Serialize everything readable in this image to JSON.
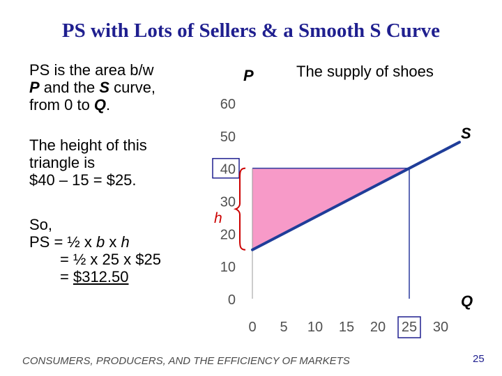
{
  "slide": {
    "title": "PS with Lots of Sellers & a Smooth S Curve",
    "page_number": "25",
    "footer": "CONSUMERS, PRODUCERS, AND THE EFFICIENCY OF MARKETS"
  },
  "text": {
    "p1": [
      "PS is the area b/w",
      "P  and the S curve,",
      "from 0 to Q."
    ],
    "p2": [
      "The height of this",
      "triangle is",
      "$40 – 15 = $25."
    ],
    "p3": [
      "So,",
      "PS = ½ x b x h",
      "= ½ x 25 x $25",
      "= $312.50"
    ]
  },
  "chart_labels": {
    "p": "P",
    "q": "Q",
    "s": "S",
    "h": "h",
    "graph_title": "The supply of shoes"
  },
  "colors": {
    "title": "#1f1f8f",
    "supply_line": "#1f3d99",
    "ps_area": "#f79ac8",
    "highlight": "#1f1f8f",
    "brace": "#cc0000",
    "ticks": "#505050"
  },
  "chart_data": {
    "type": "line",
    "title": "The supply of shoes",
    "xlabel": "Q",
    "ylabel": "P",
    "xlim": [
      0,
      30
    ],
    "ylim": [
      0,
      60
    ],
    "x_ticks": [
      0,
      5,
      10,
      15,
      20,
      25,
      30
    ],
    "y_ticks": [
      0,
      10,
      20,
      30,
      40,
      50,
      60
    ],
    "series": [
      {
        "name": "S",
        "points": [
          [
            0,
            15
          ],
          [
            25,
            40
          ],
          [
            33,
            48
          ]
        ]
      }
    ],
    "shaded_area": {
      "label": "PS",
      "vertices": [
        [
          0,
          15
        ],
        [
          0,
          40
        ],
        [
          25,
          40
        ]
      ]
    },
    "price": 40,
    "quantity": 25,
    "highlighted_ticks": {
      "x": 25,
      "y": 40
    }
  }
}
